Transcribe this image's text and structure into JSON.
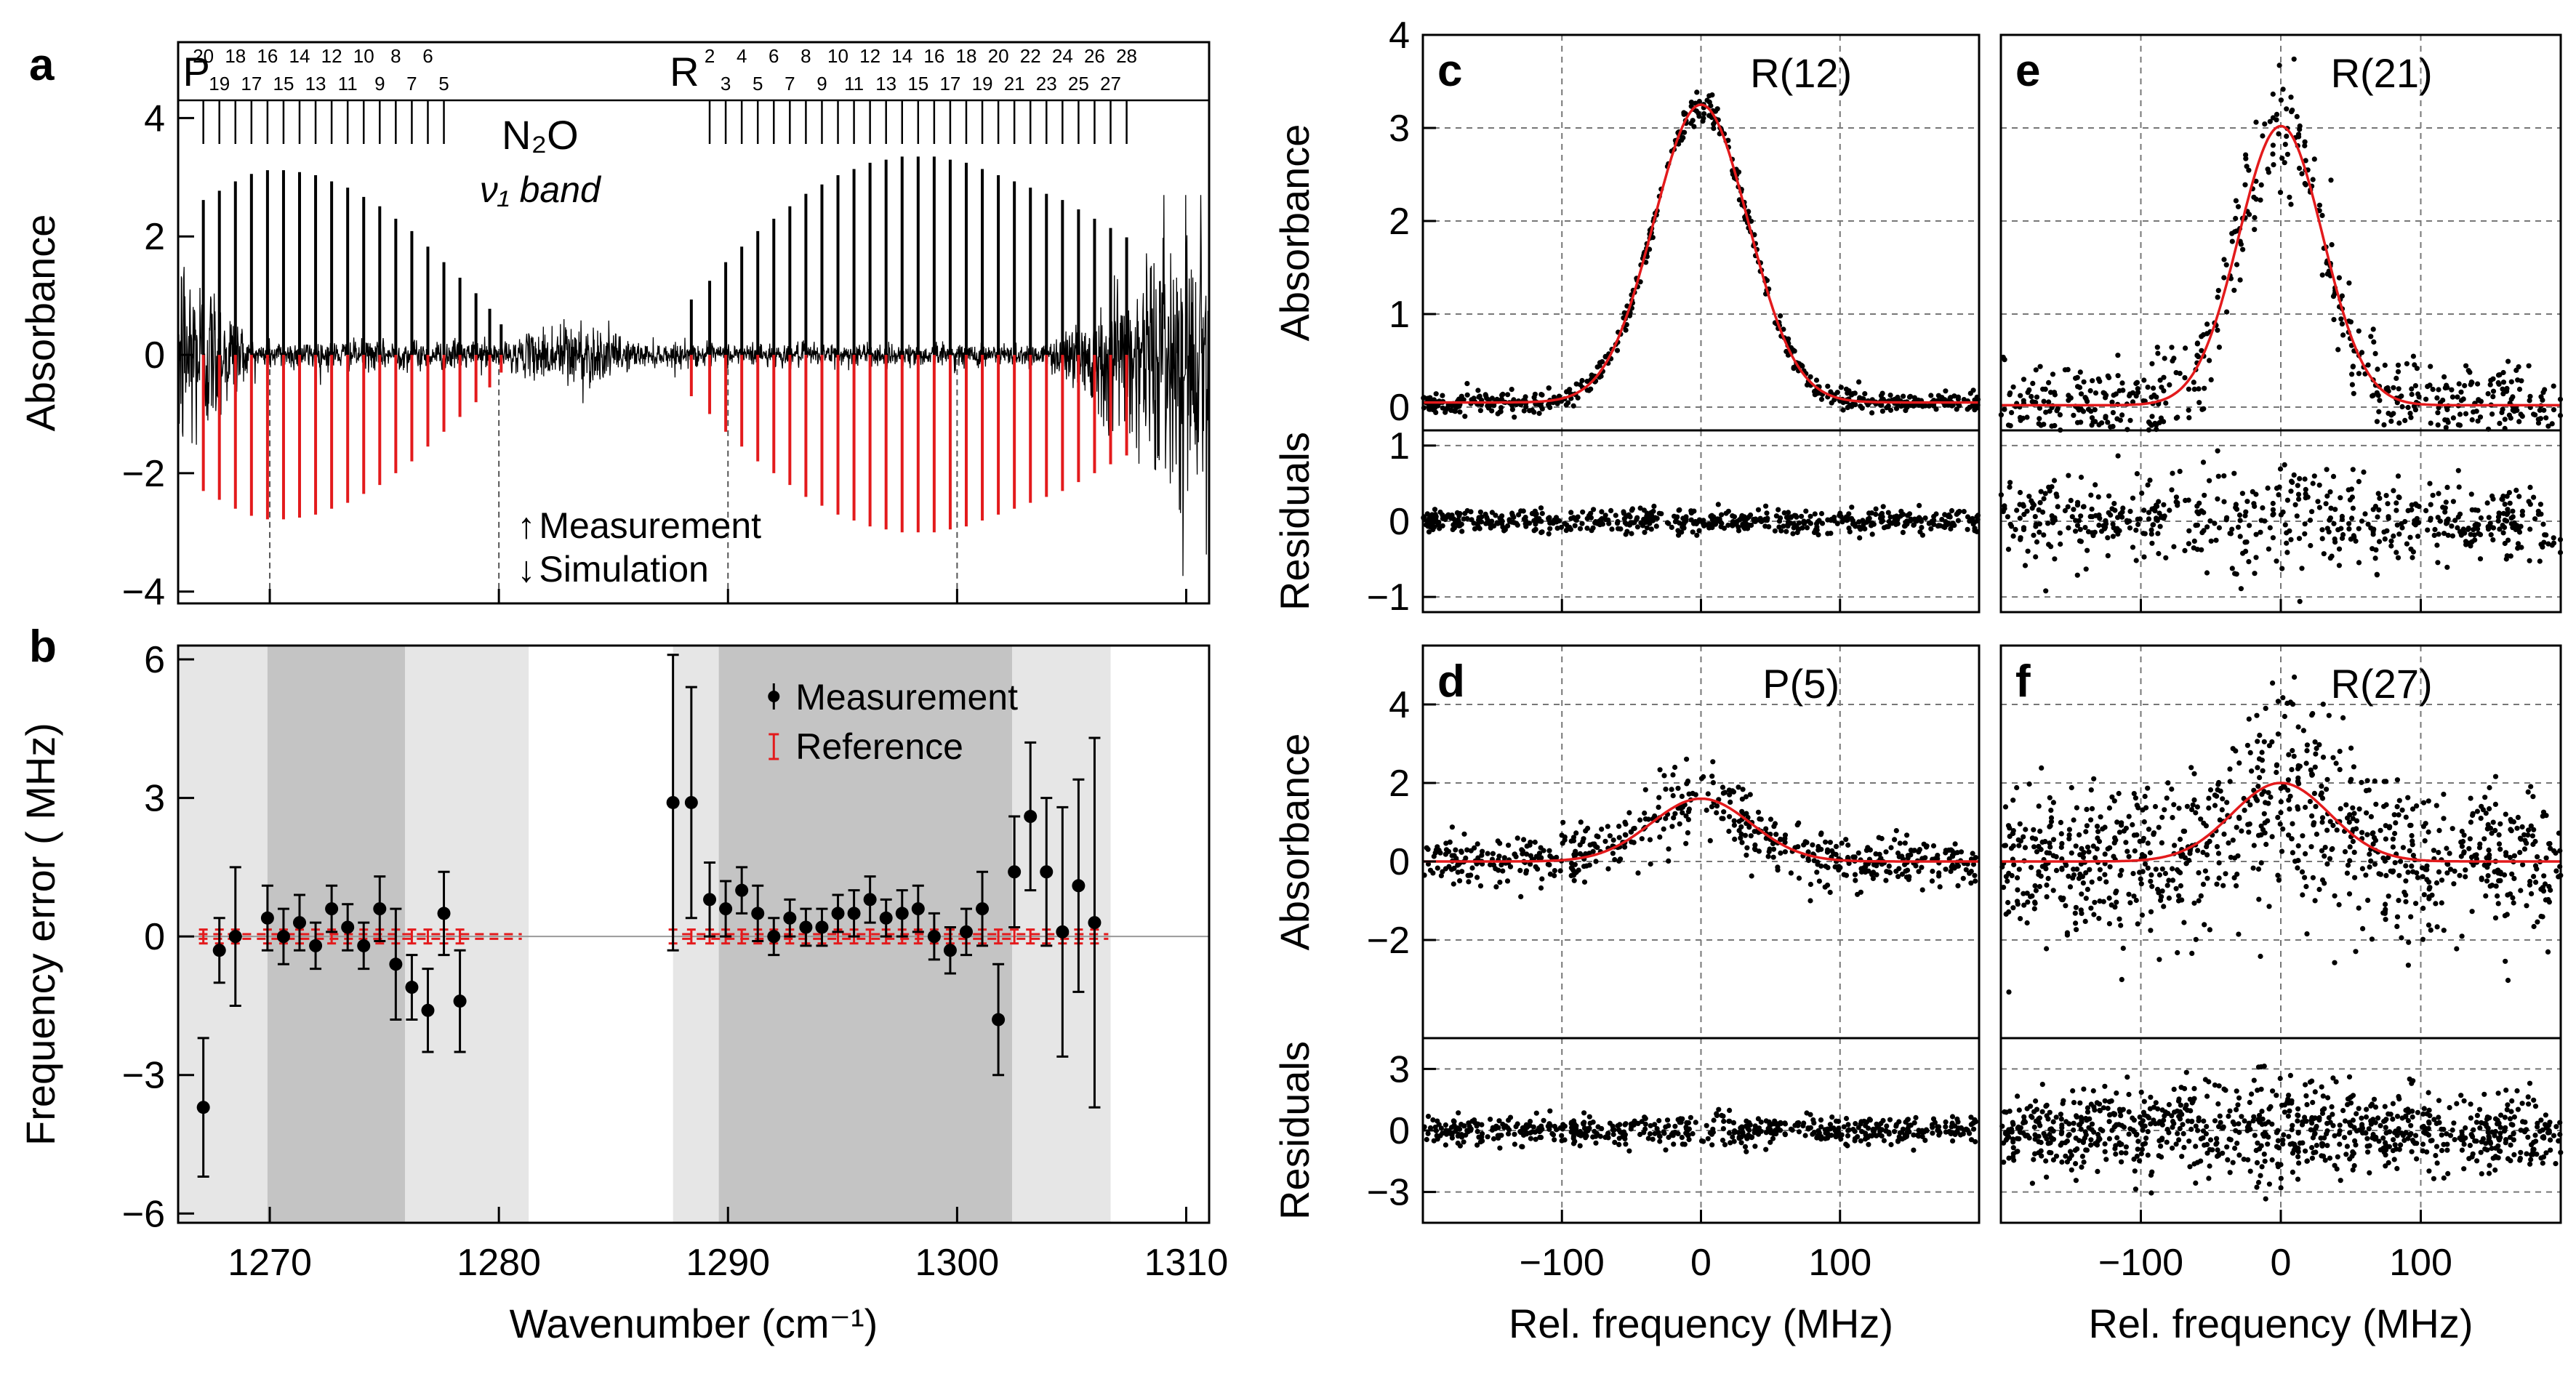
{
  "colors": {
    "measurement": "#000000",
    "simulation": "#e31a1c",
    "shade_light": "#e6e6e6",
    "shade_dark": "#c4c4c4"
  },
  "chart_data": [
    {
      "panel": "a",
      "type": "line",
      "xlabel": "Wavenumber (cm⁻¹)",
      "ylabel": "Absorbance",
      "xlim": [
        1266,
        1311
      ],
      "ylim": [
        -4.2,
        4.3
      ],
      "yticks": [
        "4",
        "2",
        "0",
        "−2",
        "−4"
      ],
      "ytick_values": [
        4,
        2,
        0,
        -2,
        -4
      ],
      "title_molecule": "N₂O",
      "title_band": "ν₁ band",
      "branch_labels": [
        "P",
        "R"
      ],
      "branch_label_x": [
        1266.8,
        1288.1
      ],
      "p_lines_top": [
        "20",
        "18",
        "16",
        "14",
        "12",
        "10",
        "8",
        "6"
      ],
      "p_lines_bottom": [
        "19",
        "17",
        "15",
        "13",
        "11",
        "9",
        "7",
        "5"
      ],
      "r_lines_top": [
        "2",
        "4",
        "6",
        "8",
        "10",
        "12",
        "14",
        "16",
        "18",
        "20",
        "22",
        "24",
        "26",
        "28"
      ],
      "r_lines_bottom": [
        "3",
        "5",
        "7",
        "9",
        "11",
        "13",
        "15",
        "17",
        "19",
        "21",
        "23",
        "25",
        "27"
      ],
      "p_line_positions": [
        1267.1,
        1267.8,
        1268.5,
        1269.2,
        1269.9,
        1270.6,
        1271.3,
        1272.0,
        1272.7,
        1273.4,
        1274.1,
        1274.8,
        1275.5,
        1276.2,
        1276.9,
        1277.6,
        1278.3,
        1279.0,
        1279.6,
        1280.1
      ],
      "r_line_positions": [
        1288.4,
        1289.2,
        1289.9,
        1290.6,
        1291.3,
        1292.0,
        1292.7,
        1293.4,
        1294.1,
        1294.8,
        1295.5,
        1296.2,
        1296.9,
        1297.6,
        1298.3,
        1299.0,
        1299.7,
        1300.4,
        1301.1,
        1301.8,
        1302.5,
        1303.2,
        1303.9,
        1304.6,
        1305.3,
        1306.0,
        1306.7,
        1307.4
      ],
      "p_sim_depths": [
        -2.3,
        -2.45,
        -2.6,
        -2.72,
        -2.78,
        -2.78,
        -2.75,
        -2.7,
        -2.6,
        -2.5,
        -2.35,
        -2.2,
        -2.0,
        -1.8,
        -1.55,
        -1.3,
        -1.05,
        -0.8,
        -0.55,
        -0.3
      ],
      "r_sim_depths": [
        -0.7,
        -1.0,
        -1.3,
        -1.55,
        -1.8,
        -2.0,
        -2.2,
        -2.4,
        -2.55,
        -2.7,
        -2.8,
        -2.9,
        -2.95,
        -3.0,
        -3.0,
        -3.0,
        -2.95,
        -2.9,
        -2.8,
        -2.7,
        -2.6,
        -2.5,
        -2.4,
        -2.3,
        -2.15,
        -2.0,
        -1.85,
        -1.7
      ],
      "dashed_markers": [
        1270,
        1280,
        1290,
        1300
      ],
      "legend": [
        {
          "arrow": "↑",
          "label": "Measurement"
        },
        {
          "arrow": "↓",
          "label": "Simulation"
        }
      ]
    },
    {
      "panel": "b",
      "type": "scatter",
      "xlabel": "Wavenumber (cm⁻¹)",
      "ylabel": "Frequency error ( MHz)",
      "xlim": [
        1266,
        1311
      ],
      "ylim": [
        -6.2,
        6.3
      ],
      "xticks": [
        "1270",
        "1280",
        "1290",
        "1300",
        "1310"
      ],
      "xtick_values": [
        1270,
        1280,
        1290,
        1300,
        1310
      ],
      "yticks": [
        "6",
        "3",
        "0",
        "−3",
        "−6"
      ],
      "ytick_values": [
        6,
        3,
        0,
        -3,
        -6
      ],
      "shaded_light": [
        [
          1266,
          1281.3
        ],
        [
          1287.6,
          1306.7
        ]
      ],
      "shaded_dark": [
        [
          1269.9,
          1275.9
        ],
        [
          1289.6,
          1302.4
        ]
      ],
      "measurement_x": [
        1267.1,
        1267.8,
        1268.5,
        1269.9,
        1270.6,
        1271.3,
        1272.0,
        1272.7,
        1273.4,
        1274.1,
        1274.8,
        1275.5,
        1276.2,
        1276.9,
        1277.6,
        1278.3,
        1279.0,
        1279.6,
        1287.6,
        1288.4,
        1289.2,
        1289.9,
        1290.6,
        1291.3,
        1292.0,
        1292.7,
        1293.4,
        1294.1,
        1294.8,
        1295.5,
        1296.2,
        1296.9,
        1297.6,
        1298.3,
        1299.0,
        1299.7,
        1300.4,
        1301.1,
        1301.8,
        1302.5,
        1303.2,
        1303.9,
        1304.6,
        1305.3,
        1306.0,
        1306.7,
        1307.4,
        1308.1
      ],
      "measurement_y": [
        -3.7,
        -0.3,
        0.0,
        0.4,
        0.0,
        0.3,
        -0.2,
        0.6,
        0.2,
        -0.2,
        0.6,
        -0.6,
        -1.1,
        -1.6,
        0.5,
        -1.4,
        0.0,
        0.0,
        2.9,
        2.9,
        0.8,
        0.6,
        1.0,
        0.5,
        0.0,
        0.4,
        0.2,
        0.2,
        0.5,
        0.5,
        0.8,
        0.4,
        0.5,
        0.6,
        0.0,
        -0.3,
        0.1,
        0.6,
        -1.8,
        1.4,
        2.6,
        1.4,
        0.1,
        1.1,
        0.3,
        0.0,
        0.0,
        0.0
      ],
      "measurement_err": [
        1.5,
        0.7,
        1.5,
        0.7,
        0.6,
        0.6,
        0.5,
        0.5,
        0.5,
        0.5,
        0.7,
        1.2,
        0.7,
        0.9,
        0.9,
        1.1,
        0.0,
        0.0,
        3.2,
        2.5,
        0.8,
        0.6,
        0.5,
        0.6,
        0.4,
        0.4,
        0.4,
        0.4,
        0.4,
        0.5,
        0.5,
        0.4,
        0.5,
        0.5,
        0.5,
        0.5,
        0.5,
        0.8,
        1.2,
        1.2,
        1.6,
        1.6,
        2.7,
        2.3,
        4.0,
        0.0,
        0.0,
        0.0
      ],
      "reference_err": 0.15,
      "legend": [
        {
          "label": "Measurement"
        },
        {
          "label": "Reference"
        }
      ]
    },
    {
      "panel": "c",
      "type": "scatter",
      "line": "R(12)",
      "ylabel_top": "Absorbance",
      "ylabel_bottom": "Residuals",
      "xlabel": "",
      "xlim": [
        -200,
        200
      ],
      "ylim": [
        -0.25,
        4.0
      ],
      "res_ylim": [
        -1.2,
        1.2
      ],
      "yticks": [
        "4",
        "3",
        "2",
        "1",
        "0"
      ],
      "ytick_values": [
        4,
        3,
        2,
        1,
        0
      ],
      "res_yticks": [
        "1",
        "0",
        "−1"
      ],
      "res_ytick_values": [
        1,
        0,
        -1
      ],
      "xticks": [
        "−100",
        "0",
        "100"
      ],
      "xtick_values": [
        -100,
        0,
        100
      ],
      "fit": {
        "amplitude": 3.2,
        "center": 0,
        "sigma": 34,
        "baseline": 0.05
      },
      "noise": 0.05,
      "res_noise": 0.07,
      "n_points": 560
    },
    {
      "panel": "e",
      "type": "scatter",
      "line": "R(21)",
      "ylabel_top": "",
      "ylabel_bottom": "",
      "xlabel": "",
      "xlim": [
        -200,
        200
      ],
      "ylim": [
        -0.25,
        4.0
      ],
      "res_ylim": [
        -1.2,
        1.2
      ],
      "yticks": [],
      "res_yticks": [],
      "xticks": [
        "−100",
        "0",
        "100"
      ],
      "xtick_values": [
        -100,
        0,
        100
      ],
      "fit": {
        "amplitude": 3.0,
        "center": 0,
        "sigma": 30,
        "baseline": 0.02
      },
      "noise": 0.22,
      "res_noise": 0.28,
      "n_points": 560
    },
    {
      "panel": "d",
      "type": "scatter",
      "line": "P(5)",
      "ylabel_top": "Absorbance",
      "ylabel_bottom": "Residuals",
      "xlabel": "Rel. frequency (MHz)",
      "xlim": [
        -200,
        200
      ],
      "ylim": [
        -4.5,
        5.5
      ],
      "res_ylim": [
        -4.5,
        4.5
      ],
      "yticks": [
        "4",
        "2",
        "0",
        "−2"
      ],
      "ytick_values": [
        4,
        2,
        0,
        -2
      ],
      "res_yticks": [
        "3",
        "0",
        "−3"
      ],
      "res_ytick_values": [
        3,
        0,
        -3
      ],
      "xticks": [
        "−100",
        "0",
        "100"
      ],
      "xtick_values": [
        -100,
        0,
        100
      ],
      "fit": {
        "amplitude": 1.6,
        "center": 0,
        "sigma": 36,
        "baseline": 0.0
      },
      "noise": 0.3,
      "res_noise": 0.3,
      "n_points": 560
    },
    {
      "panel": "f",
      "type": "scatter",
      "line": "R(27)",
      "ylabel_top": "",
      "ylabel_bottom": "",
      "xlabel": "Rel. frequency (MHz)",
      "xlim": [
        -200,
        200
      ],
      "ylim": [
        -4.5,
        5.5
      ],
      "res_ylim": [
        -4.5,
        4.5
      ],
      "yticks": [],
      "res_yticks": [],
      "xticks": [
        "−100",
        "0",
        "100"
      ],
      "xtick_values": [
        -100,
        0,
        100
      ],
      "fit": {
        "amplitude": 2.0,
        "center": 0,
        "sigma": 35,
        "baseline": 0.0
      },
      "noise": 0.9,
      "res_noise": 0.9,
      "n_points": 900
    }
  ]
}
